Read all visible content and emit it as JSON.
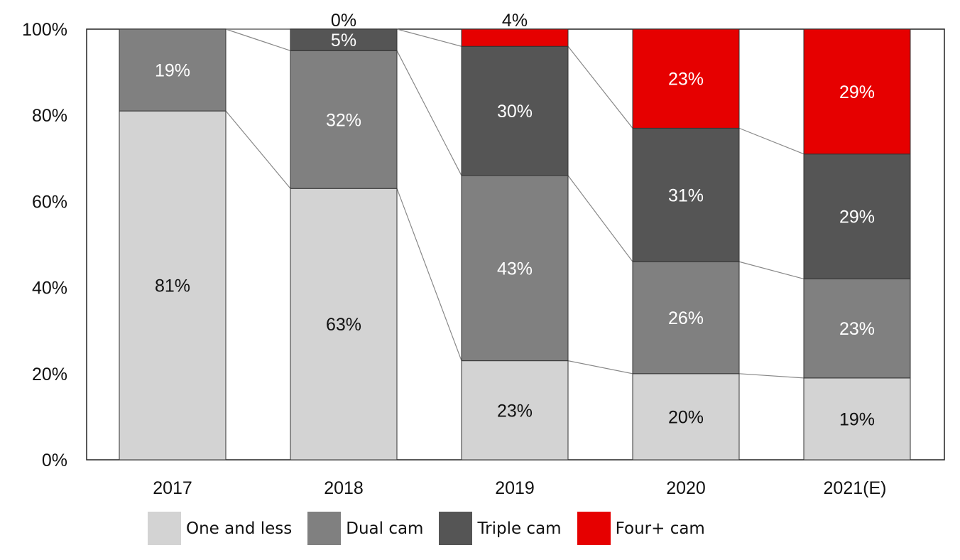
{
  "chart_data": {
    "type": "bar",
    "stacked": true,
    "title": "",
    "xlabel": "",
    "ylabel": "",
    "ylim": [
      0,
      100
    ],
    "yticks": [
      "0%",
      "20%",
      "40%",
      "60%",
      "80%",
      "100%"
    ],
    "categories": [
      "2017",
      "2018",
      "2019",
      "2020",
      "2021(E)"
    ],
    "series": [
      {
        "name": "One and less",
        "color": "#d3d3d3",
        "label_color": "#111111",
        "values": [
          81,
          63,
          23,
          20,
          19
        ]
      },
      {
        "name": "Dual cam",
        "color": "#808080",
        "label_color": "#ffffff",
        "values": [
          19,
          32,
          43,
          26,
          23
        ]
      },
      {
        "name": "Triple cam",
        "color": "#555555",
        "label_color": "#ffffff",
        "values": [
          0,
          5,
          30,
          31,
          29
        ]
      },
      {
        "name": "Four+ cam",
        "color": "#e60000",
        "label_color": "#ffffff",
        "values": [
          0,
          0,
          4,
          23,
          29
        ]
      }
    ],
    "data_labels": [
      [
        "81%",
        "19%",
        null,
        null
      ],
      [
        "63%",
        "32%",
        "5%",
        "0%"
      ],
      [
        "23%",
        "43%",
        "30%",
        "4%"
      ],
      [
        "20%",
        "26%",
        "31%",
        "23%"
      ],
      [
        "19%",
        "23%",
        "29%",
        "29%"
      ]
    ],
    "legend_position": "bottom",
    "grid": false
  }
}
